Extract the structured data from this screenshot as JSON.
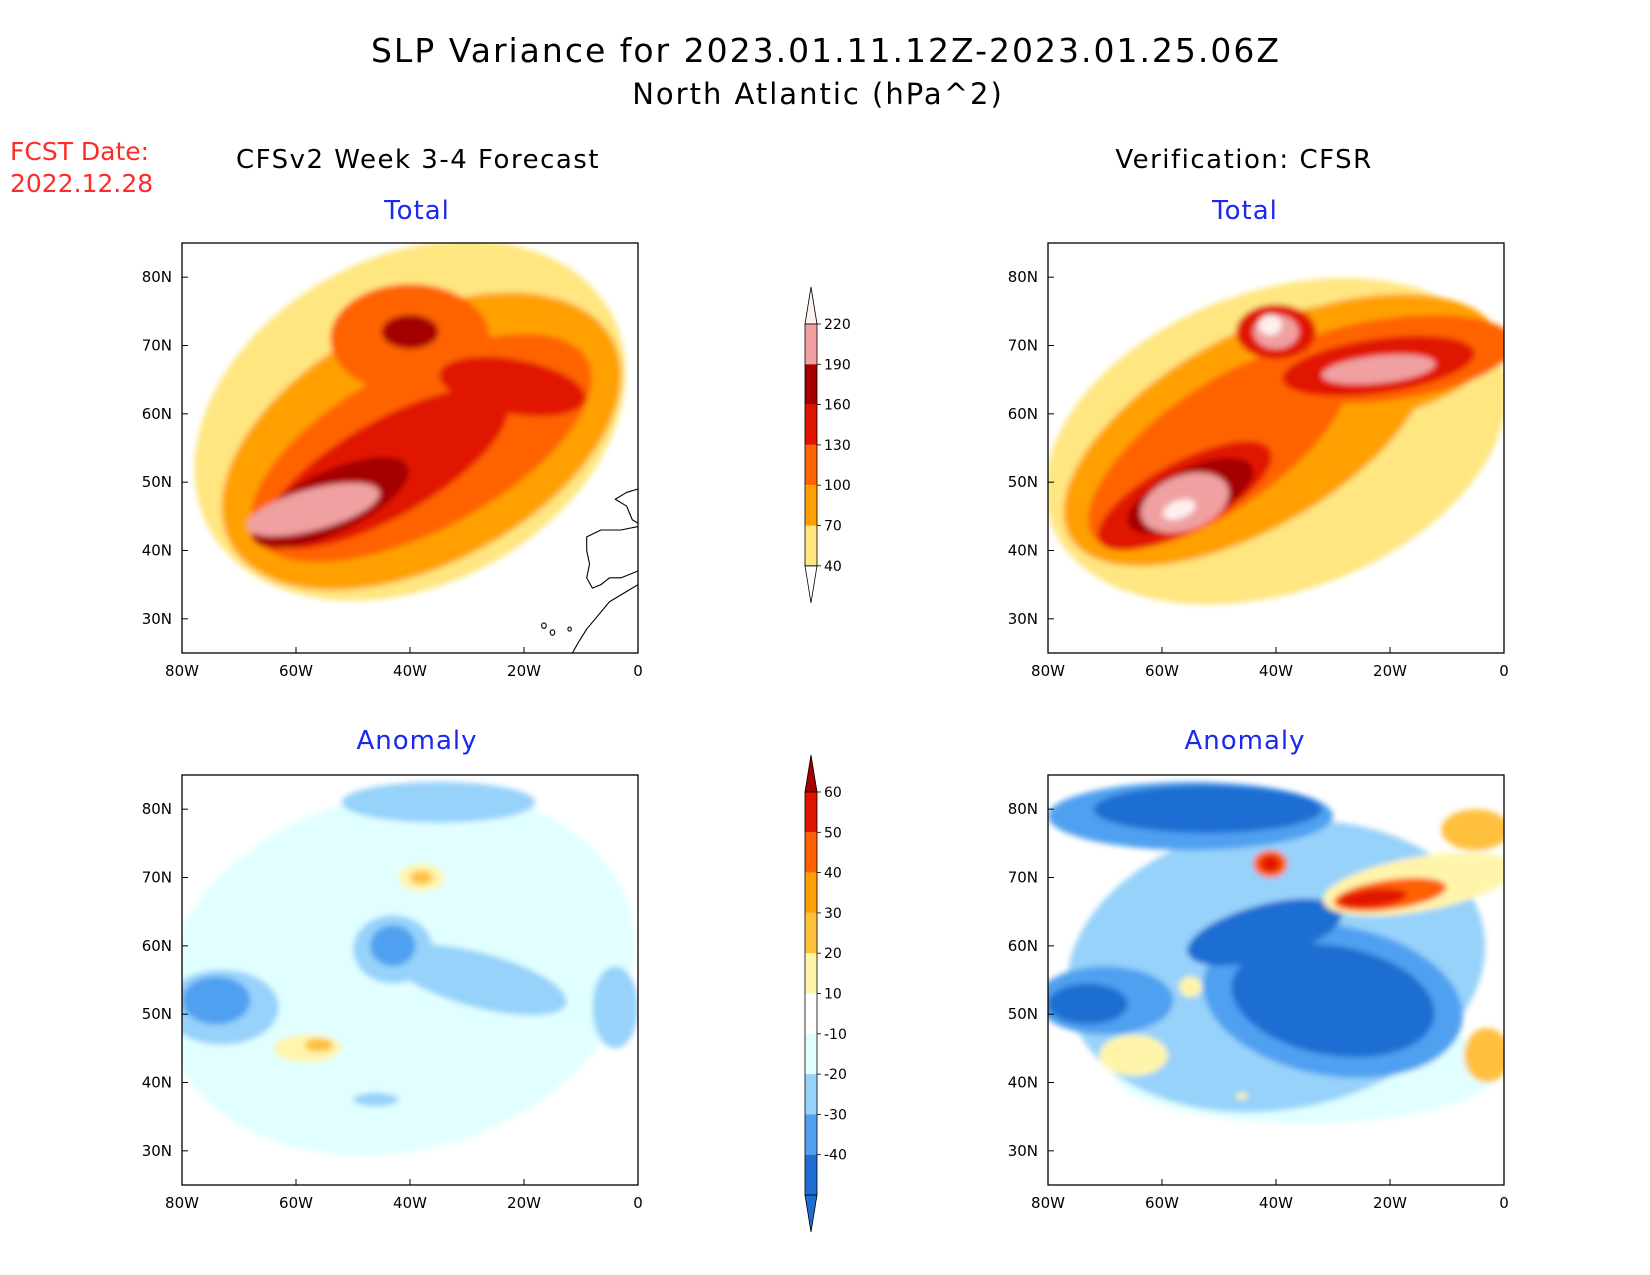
{
  "header": {
    "title": "SLP Variance for 2023.01.11.12Z-2023.01.25.06Z",
    "subtitle": "North Atlantic (hPa^2)",
    "fcst_label": "FCST Date:",
    "fcst_date": "2022.12.28",
    "left_column_title": "CFSv2 Week 3-4 Forecast",
    "right_column_title": "Verification: CFSR"
  },
  "panels": [
    {
      "title": "Total"
    },
    {
      "title": "Total"
    },
    {
      "title": "Anomaly"
    },
    {
      "title": "Anomaly"
    }
  ],
  "axes": {
    "x_ticks": [
      "80W",
      "60W",
      "40W",
      "20W",
      "0"
    ],
    "y_ticks": [
      "30N",
      "40N",
      "50N",
      "60N",
      "70N",
      "80N"
    ]
  },
  "colors": {
    "total": [
      "#ffe680",
      "#ffa000",
      "#ff6400",
      "#e11400",
      "#a50000",
      "#f0a0a0",
      "#fff0f0"
    ],
    "anomaly": [
      "#1e6ed2",
      "#50a0f0",
      "#96d2fa",
      "#e1ffff",
      "#ffffff",
      "#fff5aa",
      "#ffc03c",
      "#ffa000",
      "#ff6000",
      "#e11400",
      "#a50000"
    ]
  },
  "chart_data": [
    {
      "type": "heatmap",
      "title": "Total",
      "series_source": "CFSv2 Week 3-4 Forecast",
      "units": "hPa^2",
      "xlim_lon": [
        -80,
        0
      ],
      "ylim_lat": [
        25,
        85
      ],
      "levels": [
        40,
        70,
        100,
        130,
        160,
        190,
        220
      ],
      "features": [
        {
          "name": "band-edge",
          "level_index": 0,
          "center": [
            -40,
            59
          ],
          "radius": [
            40,
            24
          ],
          "angle": -28
        },
        {
          "name": "band-main",
          "level_index": 1,
          "center": [
            -38,
            56
          ],
          "radius": [
            38,
            18
          ],
          "angle": -28
        },
        {
          "name": "band-core",
          "level_index": 2,
          "center": [
            -38,
            55
          ],
          "radius": [
            33,
            12
          ],
          "angle": -28
        },
        {
          "name": "greenland-ring",
          "level_index": 2,
          "center": [
            -40,
            71
          ],
          "radius": [
            14,
            8
          ],
          "angle": 0
        },
        {
          "name": "storm-track",
          "level_index": 3,
          "center": [
            -44,
            52
          ],
          "radius": [
            24,
            7
          ],
          "angle": -30
        },
        {
          "name": "east-arm",
          "level_index": 3,
          "center": [
            -22,
            64
          ],
          "radius": [
            13,
            4
          ],
          "angle": 10
        },
        {
          "name": "storm-core",
          "level_index": 4,
          "center": [
            -54,
            47
          ],
          "radius": [
            15,
            4.5
          ],
          "angle": -25
        },
        {
          "name": "greenland-max",
          "level_index": 4,
          "center": [
            -40,
            72
          ],
          "radius": [
            5,
            2.5
          ],
          "angle": 0
        },
        {
          "name": "newfoundland-max",
          "level_index": 5,
          "center": [
            -57,
            46
          ],
          "radius": [
            12,
            3
          ],
          "angle": -15
        }
      ]
    },
    {
      "type": "heatmap",
      "title": "Total",
      "series_source": "Verification: CFSR",
      "units": "hPa^2",
      "xlim_lon": [
        -80,
        0
      ],
      "ylim_lat": [
        25,
        85
      ],
      "levels": [
        40,
        70,
        100,
        130,
        160,
        190,
        220
      ],
      "features": [
        {
          "name": "band-edge",
          "level_index": 0,
          "center": [
            -40,
            56
          ],
          "radius": [
            42,
            22
          ],
          "angle": -20
        },
        {
          "name": "band-main",
          "level_index": 1,
          "center": [
            -45,
            57
          ],
          "radius": [
            36,
            14
          ],
          "angle": -30
        },
        {
          "name": "north-arm",
          "level_index": 1,
          "center": [
            -25,
            68
          ],
          "radius": [
            24,
            9
          ],
          "angle": -10
        },
        {
          "name": "band-core",
          "level_index": 2,
          "center": [
            -50,
            55
          ],
          "radius": [
            27,
            9
          ],
          "angle": -35
        },
        {
          "name": "east-band",
          "level_index": 2,
          "center": [
            -20,
            68
          ],
          "radius": [
            22,
            6
          ],
          "angle": -8
        },
        {
          "name": "storm-track",
          "level_index": 3,
          "center": [
            -56,
            48
          ],
          "radius": [
            17,
            5
          ],
          "angle": -28
        },
        {
          "name": "iceland-band",
          "level_index": 3,
          "center": [
            -22,
            67
          ],
          "radius": [
            17,
            4
          ],
          "angle": -8
        },
        {
          "name": "greenland-ring",
          "level_index": 3,
          "center": [
            -40,
            72
          ],
          "radius": [
            7,
            4
          ],
          "angle": 0
        },
        {
          "name": "storm-core",
          "level_index": 4,
          "center": [
            -55,
            48
          ],
          "radius": [
            12,
            4
          ],
          "angle": -25
        },
        {
          "name": "greenland-max",
          "level_index": 5,
          "center": [
            -40,
            72
          ],
          "radius": [
            4,
            2.5
          ],
          "angle": 0
        },
        {
          "name": "iceland-max",
          "level_index": 5,
          "center": [
            -22,
            66.5
          ],
          "radius": [
            10,
            2
          ],
          "angle": -6
        },
        {
          "name": "newfoundland-max",
          "level_index": 5,
          "center": [
            -56,
            47
          ],
          "radius": [
            8,
            4
          ],
          "angle": -20
        },
        {
          "name": "greenland-peak",
          "level_index": 6,
          "center": [
            -41,
            73
          ],
          "radius": [
            2,
            1.5
          ],
          "angle": 0
        },
        {
          "name": "newfoundland-peak",
          "level_index": 6,
          "center": [
            -57,
            46
          ],
          "radius": [
            3,
            1.3
          ],
          "angle": -20
        }
      ]
    },
    {
      "type": "heatmap",
      "title": "Anomaly",
      "series_source": "CFSv2 Week 3-4 Forecast",
      "units": "hPa^2",
      "xlim_lon": [
        -80,
        0
      ],
      "ylim_lat": [
        25,
        85
      ],
      "levels": [
        -40,
        -30,
        -20,
        -10,
        10,
        20,
        30,
        40,
        50,
        60
      ],
      "features": [
        {
          "name": "basin-weak-neg",
          "level_index": 3,
          "center": [
            -42,
            56
          ],
          "radius": [
            42,
            26
          ],
          "angle": -15
        },
        {
          "name": "north-neg",
          "level_index": 2,
          "center": [
            -35,
            81
          ],
          "radius": [
            17,
            3
          ],
          "angle": 0
        },
        {
          "name": "labrador-neg",
          "level_index": 2,
          "center": [
            -73,
            51
          ],
          "radius": [
            10,
            5.5
          ],
          "angle": 0
        },
        {
          "name": "central-neg",
          "level_index": 2,
          "center": [
            -28,
            55
          ],
          "radius": [
            16,
            4
          ],
          "angle": 15
        },
        {
          "name": "greenland-neg",
          "level_index": 2,
          "center": [
            -43,
            59.5
          ],
          "radius": [
            7,
            5
          ],
          "angle": 0
        },
        {
          "name": "uk-neg",
          "level_index": 2,
          "center": [
            -4,
            51
          ],
          "radius": [
            4,
            6
          ],
          "angle": 0
        },
        {
          "name": "south-neg",
          "level_index": 2,
          "center": [
            -46,
            37.5
          ],
          "radius": [
            4,
            1
          ],
          "angle": 0
        },
        {
          "name": "labrador-core",
          "level_index": 1,
          "center": [
            -74,
            52
          ],
          "radius": [
            6,
            3.5
          ],
          "angle": 0
        },
        {
          "name": "greenland-core",
          "level_index": 1,
          "center": [
            -43,
            60
          ],
          "radius": [
            4,
            3
          ],
          "angle": 0
        },
        {
          "name": "gulf-pos",
          "level_index": 5,
          "center": [
            -58,
            45
          ],
          "radius": [
            6,
            2
          ],
          "angle": 0
        },
        {
          "name": "gulf-pos-core",
          "level_index": 6,
          "center": [
            -56,
            45.5
          ],
          "radius": [
            2.5,
            1
          ],
          "angle": 0
        },
        {
          "name": "denmark-pos",
          "level_index": 5,
          "center": [
            -38,
            70
          ],
          "radius": [
            4,
            2
          ],
          "angle": 0
        },
        {
          "name": "denmark-pos-core",
          "level_index": 6,
          "center": [
            -38,
            70
          ],
          "radius": [
            2,
            1
          ],
          "angle": 0
        }
      ]
    },
    {
      "type": "heatmap",
      "title": "Anomaly",
      "series_source": "Verification: CFSR",
      "units": "hPa^2",
      "xlim_lon": [
        -80,
        0
      ],
      "ylim_lat": [
        25,
        85
      ],
      "levels": [
        -40,
        -30,
        -20,
        -10,
        10,
        20,
        30,
        40,
        50,
        60
      ],
      "features": [
        {
          "name": "south-weak-neg",
          "level_index": 3,
          "center": [
            -35,
            42
          ],
          "radius": [
            34,
            8
          ],
          "angle": 0
        },
        {
          "name": "basin-neg",
          "level_index": 2,
          "center": [
            -40,
            57
          ],
          "radius": [
            37,
            21
          ],
          "angle": -10
        },
        {
          "name": "arctic-neg",
          "level_index": 1,
          "center": [
            -55,
            79
          ],
          "radius": [
            25,
            5
          ],
          "angle": 0
        },
        {
          "name": "basin-neg-mid",
          "level_index": 1,
          "center": [
            -30,
            52
          ],
          "radius": [
            23,
            11
          ],
          "angle": 10
        },
        {
          "name": "labrador-neg",
          "level_index": 1,
          "center": [
            -70,
            52
          ],
          "radius": [
            12,
            5
          ],
          "angle": 0
        },
        {
          "name": "arctic-core",
          "level_index": 0,
          "center": [
            -52,
            80
          ],
          "radius": [
            20,
            3.5
          ],
          "angle": 0
        },
        {
          "name": "greenland-core",
          "level_index": 0,
          "center": [
            -42,
            62
          ],
          "radius": [
            14,
            4
          ],
          "angle": -15
        },
        {
          "name": "basin-core",
          "level_index": 0,
          "center": [
            -30,
            52
          ],
          "radius": [
            18,
            8
          ],
          "angle": 10
        },
        {
          "name": "labrador-core",
          "level_index": 0,
          "center": [
            -73,
            51.5
          ],
          "radius": [
            7,
            3
          ],
          "angle": 0
        },
        {
          "name": "east-pos",
          "level_index": 5,
          "center": [
            -15,
            69
          ],
          "radius": [
            17,
            4
          ],
          "angle": -10
        },
        {
          "name": "east-pos-core",
          "level_index": 8,
          "center": [
            -20,
            67.5
          ],
          "radius": [
            10,
            2.2
          ],
          "angle": -8
        },
        {
          "name": "iceland-max",
          "level_index": 9,
          "center": [
            -23,
            67
          ],
          "radius": [
            6,
            1.3
          ],
          "angle": -6
        },
        {
          "name": "denmark-pos",
          "level_index": 8,
          "center": [
            -41,
            72
          ],
          "radius": [
            3,
            2
          ],
          "angle": 0
        },
        {
          "name": "denmark-max",
          "level_index": 9,
          "center": [
            -41,
            72
          ],
          "radius": [
            1.8,
            1.2
          ],
          "angle": 0
        },
        {
          "name": "nordic-pos",
          "level_index": 6,
          "center": [
            -5,
            77
          ],
          "radius": [
            6,
            3
          ],
          "angle": 0
        },
        {
          "name": "iberia-pos",
          "level_index": 6,
          "center": [
            -3,
            44
          ],
          "radius": [
            4,
            4
          ],
          "angle": 0
        },
        {
          "name": "davis-pos",
          "level_index": 5,
          "center": [
            -55,
            54
          ],
          "radius": [
            2,
            1.5
          ],
          "angle": 0
        },
        {
          "name": "gulf-pos",
          "level_index": 5,
          "center": [
            -65,
            44
          ],
          "radius": [
            6,
            3
          ],
          "angle": 0
        },
        {
          "name": "atlantic-pos",
          "level_index": 5,
          "center": [
            -46,
            38
          ],
          "radius": [
            1,
            0.5
          ],
          "angle": 0
        }
      ]
    }
  ],
  "colorbars": [
    {
      "name": "total",
      "labels": [
        "40",
        "70",
        "100",
        "130",
        "160",
        "190",
        "220"
      ]
    },
    {
      "name": "anomaly",
      "labels": [
        "-40",
        "-30",
        "-20",
        "-10",
        "10",
        "20",
        "30",
        "40",
        "50",
        "60"
      ]
    }
  ]
}
